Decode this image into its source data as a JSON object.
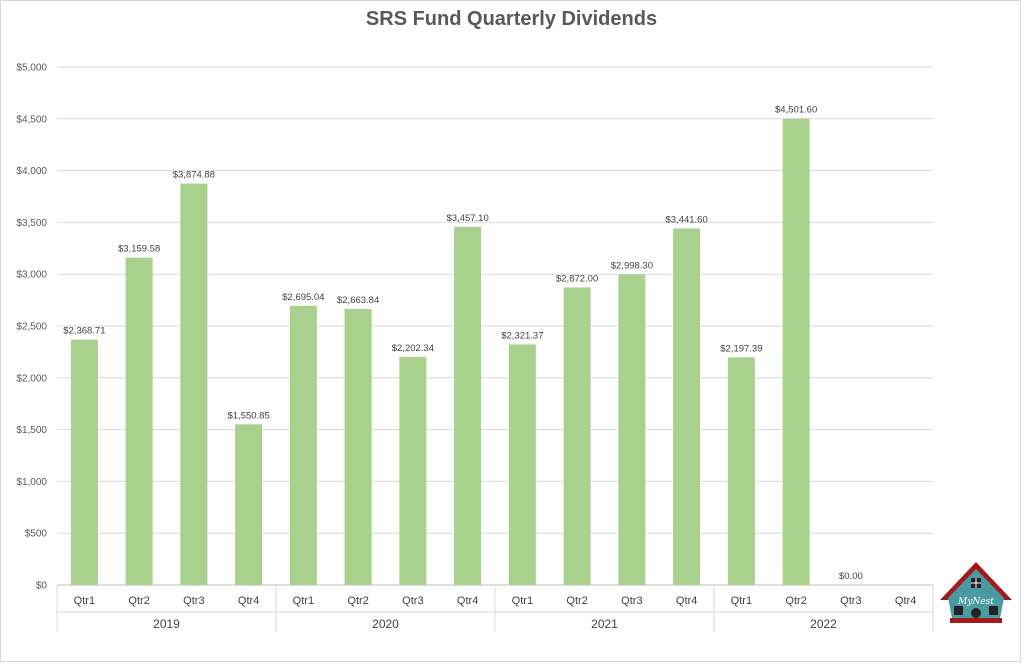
{
  "chart_data": {
    "type": "bar",
    "title": "SRS Fund Quarterly Dividends",
    "xlabel": "",
    "ylabel": "",
    "ylim": [
      0,
      5000
    ],
    "y_ticks": [
      {
        "value": 0,
        "label": "$0"
      },
      {
        "value": 500,
        "label": "$500"
      },
      {
        "value": 1000,
        "label": "$1,000"
      },
      {
        "value": 1500,
        "label": "$1,500"
      },
      {
        "value": 2000,
        "label": "$2,000"
      },
      {
        "value": 2500,
        "label": "$2,500"
      },
      {
        "value": 3000,
        "label": "$3,000"
      },
      {
        "value": 3500,
        "label": "$3,500"
      },
      {
        "value": 4000,
        "label": "$4,000"
      },
      {
        "value": 4500,
        "label": "$4,500"
      },
      {
        "value": 5000,
        "label": "$5,000"
      }
    ],
    "groups": [
      {
        "label": "2019",
        "count": 4
      },
      {
        "label": "2020",
        "count": 4
      },
      {
        "label": "2021",
        "count": 4
      },
      {
        "label": "2022",
        "count": 4
      }
    ],
    "categories": [
      "Qtr1",
      "Qtr2",
      "Qtr3",
      "Qtr4",
      "Qtr1",
      "Qtr2",
      "Qtr3",
      "Qtr4",
      "Qtr1",
      "Qtr2",
      "Qtr3",
      "Qtr4",
      "Qtr1",
      "Qtr2",
      "Qtr3",
      "Qtr4"
    ],
    "values": [
      2368.71,
      3159.58,
      3874.88,
      1550.85,
      2695.04,
      2663.84,
      2202.34,
      3457.1,
      2321.37,
      2872.0,
      2998.3,
      3441.6,
      2197.39,
      4501.6,
      0.0,
      null
    ],
    "data_labels": [
      "$2,368.71",
      "$3,159.58",
      "$3,874.88",
      "$1,550.85",
      "$2,695.04",
      "$2,663.84",
      "$2,202.34",
      "$3,457.10",
      "$2,321.37",
      "$2,872.00",
      "$2,998.30",
      "$3,441.60",
      "$2,197.39",
      "$4,501.60",
      "$0.00",
      ""
    ],
    "grid": true,
    "legend": "none",
    "bar_color": "#a9d18e",
    "gridline_color": "#d9d9d9"
  },
  "logo": {
    "text": "MyNest",
    "roof_color": "#a01c1c",
    "body_color": "#4a9aa1"
  }
}
